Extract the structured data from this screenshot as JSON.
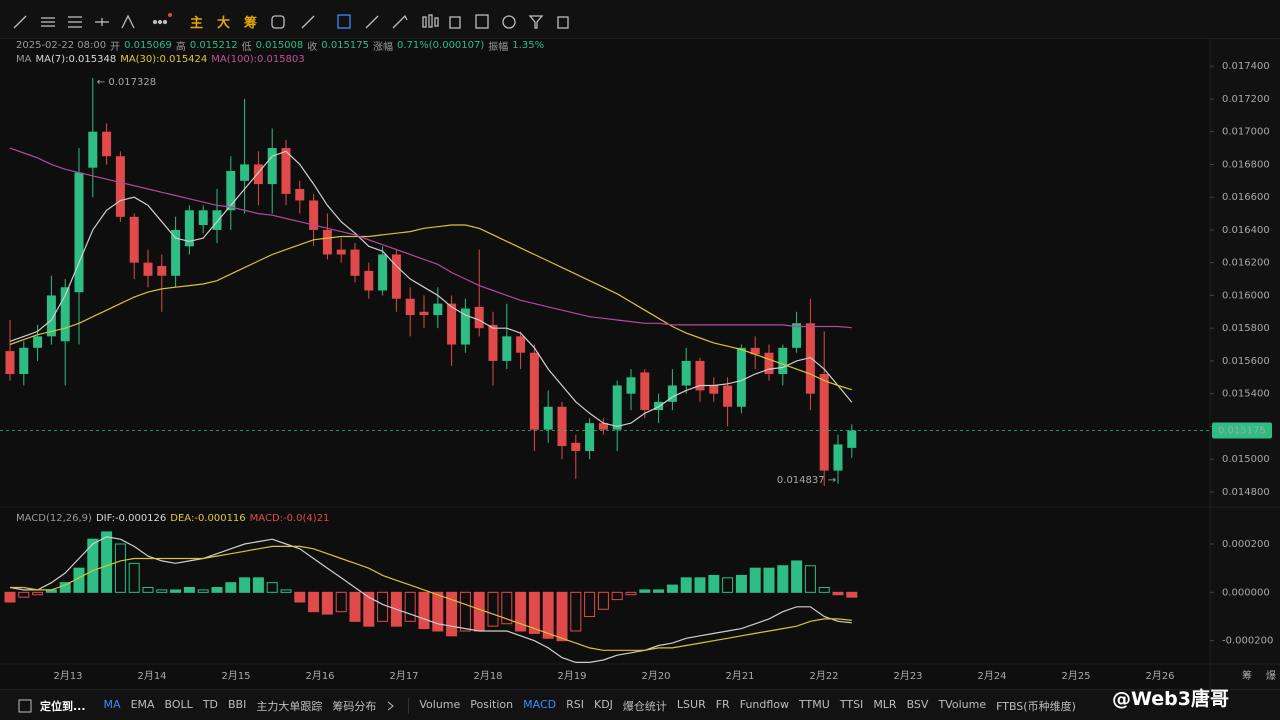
{
  "toolbar": {
    "chart_tools": [
      "主",
      "大",
      "筹"
    ]
  },
  "info": {
    "datetime": "2025-02-22 08:00",
    "fields": [
      {
        "label": "开",
        "value": "0.015069"
      },
      {
        "label": "高",
        "value": "0.015212"
      },
      {
        "label": "低",
        "value": "0.015008"
      },
      {
        "label": "收",
        "value": "0.015175"
      },
      {
        "label": "涨幅",
        "value": "0.71%(0.000107)"
      },
      {
        "label": "振幅",
        "value": "1.35%"
      }
    ]
  },
  "chart_data": [
    {
      "type": "candlestick",
      "legend_title": "MA",
      "up_color": "#2ebd85",
      "down_color": "#e04a4a",
      "open": [
        0.01566,
        0.01552,
        0.01568,
        0.01575,
        0.01572,
        0.01602,
        0.01678,
        0.017,
        0.01685,
        0.01648,
        0.0162,
        0.01618,
        0.01612,
        0.0163,
        0.01643,
        0.0164,
        0.01652,
        0.0167,
        0.0168,
        0.01668,
        0.0169,
        0.01665,
        0.01658,
        0.0164,
        0.01628,
        0.01628,
        0.01615,
        0.01603,
        0.01625,
        0.01598,
        0.0159,
        0.01588,
        0.01595,
        0.0157,
        0.01593,
        0.01582,
        0.0156,
        0.01575,
        0.01565,
        0.01518,
        0.01532,
        0.0151,
        0.01505,
        0.01522,
        0.01518,
        0.0154,
        0.01553,
        0.0153,
        0.01535,
        0.01545,
        0.0156,
        0.01545,
        0.01545,
        0.01532,
        0.01568,
        0.01565,
        0.01552,
        0.01568,
        0.01583,
        0.01552,
        0.01493,
        0.015069
      ],
      "high": [
        0.01585,
        0.01572,
        0.01582,
        0.01612,
        0.0161,
        0.0169,
        0.017328,
        0.01705,
        0.01688,
        0.0165,
        0.01628,
        0.01625,
        0.01648,
        0.01655,
        0.01655,
        0.01665,
        0.01685,
        0.0172,
        0.01688,
        0.01702,
        0.01695,
        0.0167,
        0.01662,
        0.0165,
        0.01635,
        0.01632,
        0.0162,
        0.0163,
        0.01628,
        0.01605,
        0.016,
        0.01605,
        0.016,
        0.01598,
        0.01628,
        0.0159,
        0.01595,
        0.01578,
        0.0157,
        0.01542,
        0.01535,
        0.01515,
        0.01525,
        0.01525,
        0.01548,
        0.01555,
        0.01555,
        0.0154,
        0.01555,
        0.01568,
        0.01562,
        0.0155,
        0.0155,
        0.0157,
        0.01575,
        0.0157,
        0.0157,
        0.0159,
        0.01598,
        0.01578,
        0.01515,
        0.015212
      ],
      "low": [
        0.01548,
        0.01545,
        0.0156,
        0.0157,
        0.01545,
        0.0157,
        0.0166,
        0.0168,
        0.01645,
        0.0161,
        0.01605,
        0.0159,
        0.01605,
        0.01625,
        0.01638,
        0.01632,
        0.0164,
        0.0165,
        0.01655,
        0.0165,
        0.01655,
        0.0165,
        0.0163,
        0.01622,
        0.0162,
        0.01608,
        0.01598,
        0.016,
        0.0159,
        0.01575,
        0.0158,
        0.0158,
        0.01557,
        0.01565,
        0.01575,
        0.01545,
        0.01555,
        0.01555,
        0.01505,
        0.0151,
        0.015,
        0.01488,
        0.015,
        0.01515,
        0.01505,
        0.0153,
        0.01525,
        0.01522,
        0.0153,
        0.0154,
        0.01535,
        0.01535,
        0.0152,
        0.01528,
        0.01555,
        0.01548,
        0.01545,
        0.01565,
        0.0153,
        0.014837,
        0.01485,
        0.015008
      ],
      "close": [
        0.01552,
        0.01568,
        0.01575,
        0.016,
        0.01605,
        0.01675,
        0.017,
        0.01685,
        0.01648,
        0.0162,
        0.01612,
        0.01612,
        0.0164,
        0.01652,
        0.01652,
        0.01652,
        0.01676,
        0.0168,
        0.01668,
        0.0169,
        0.01662,
        0.01658,
        0.0164,
        0.01625,
        0.01625,
        0.01612,
        0.01603,
        0.01625,
        0.01598,
        0.01588,
        0.01588,
        0.01595,
        0.0157,
        0.01592,
        0.0158,
        0.0156,
        0.01575,
        0.01565,
        0.01518,
        0.01532,
        0.01508,
        0.01505,
        0.01522,
        0.01518,
        0.01545,
        0.0155,
        0.0153,
        0.01535,
        0.01545,
        0.0156,
        0.01542,
        0.0154,
        0.01532,
        0.01568,
        0.01564,
        0.01552,
        0.01568,
        0.01583,
        0.0154,
        0.01493,
        0.01509,
        0.015175
      ],
      "series": [
        {
          "name": "MA(7):0.015348",
          "color": "#cfcfcf",
          "values": [
            0.01572,
            0.01575,
            0.01578,
            0.01585,
            0.016,
            0.0162,
            0.0164,
            0.01652,
            0.01658,
            0.0166,
            0.01655,
            0.01645,
            0.01635,
            0.01633,
            0.01635,
            0.01645,
            0.01655,
            0.01665,
            0.01675,
            0.01685,
            0.01688,
            0.0168,
            0.01668,
            0.01655,
            0.01645,
            0.01638,
            0.0163,
            0.01627,
            0.01618,
            0.0161,
            0.01605,
            0.016,
            0.01593,
            0.01588,
            0.01585,
            0.0158,
            0.0158,
            0.01577,
            0.01568,
            0.01555,
            0.01545,
            0.01535,
            0.01528,
            0.01522,
            0.0152,
            0.01522,
            0.01528,
            0.01532,
            0.01538,
            0.01542,
            0.01545,
            0.01545,
            0.01546,
            0.01548,
            0.01552,
            0.01555,
            0.01556,
            0.0156,
            0.01562,
            0.01555,
            0.01545,
            0.015348
          ]
        },
        {
          "name": "MA(30):0.015424",
          "color": "#d8c33a",
          "values": [
            0.0157,
            0.01573,
            0.01576,
            0.01578,
            0.0158,
            0.01583,
            0.01587,
            0.01591,
            0.01595,
            0.01599,
            0.01602,
            0.01604,
            0.01605,
            0.01606,
            0.01607,
            0.01609,
            0.01613,
            0.01617,
            0.01621,
            0.01625,
            0.01628,
            0.01631,
            0.01634,
            0.01635,
            0.01636,
            0.01636,
            0.01636,
            0.01637,
            0.01638,
            0.01639,
            0.01641,
            0.01642,
            0.01643,
            0.01643,
            0.01641,
            0.01637,
            0.01633,
            0.01629,
            0.01625,
            0.01621,
            0.01617,
            0.01613,
            0.01609,
            0.01605,
            0.01601,
            0.01596,
            0.01591,
            0.01586,
            0.01581,
            0.01577,
            0.01574,
            0.01571,
            0.01569,
            0.01567,
            0.01564,
            0.01561,
            0.01558,
            0.01555,
            0.01552,
            0.01548,
            0.01545,
            0.015424
          ]
        },
        {
          "name": "MA(100):0.015803",
          "color": "#b24a9c",
          "values": [
            0.0169,
            0.01687,
            0.01684,
            0.0168,
            0.01677,
            0.01675,
            0.01673,
            0.01671,
            0.01669,
            0.01667,
            0.01665,
            0.01663,
            0.01661,
            0.01659,
            0.01657,
            0.01655,
            0.01654,
            0.01652,
            0.0165,
            0.01649,
            0.01647,
            0.01645,
            0.01643,
            0.01641,
            0.01639,
            0.01637,
            0.01634,
            0.01631,
            0.01628,
            0.01625,
            0.01622,
            0.01619,
            0.01614,
            0.0161,
            0.01606,
            0.01603,
            0.016,
            0.01597,
            0.01595,
            0.01593,
            0.01591,
            0.01589,
            0.01587,
            0.01586,
            0.01585,
            0.01584,
            0.01583,
            0.01583,
            0.01582,
            0.01582,
            0.01582,
            0.01582,
            0.01582,
            0.01582,
            0.01582,
            0.01582,
            0.01582,
            0.01581,
            0.01581,
            0.01581,
            0.01581,
            0.015803
          ]
        }
      ],
      "max_label": "← 0.017328",
      "min_label": "0.014837 →",
      "last_price_label": "0.015175",
      "ylim": [
        0.01472,
        0.01756
      ],
      "yticks": [
        {
          "value": 0.0174,
          "label": "0.017400"
        },
        {
          "value": 0.0172,
          "label": "0.017200"
        },
        {
          "value": 0.017,
          "label": "0.017000"
        },
        {
          "value": 0.0168,
          "label": "0.016800"
        },
        {
          "value": 0.0166,
          "label": "0.016600"
        },
        {
          "value": 0.0164,
          "label": "0.016400"
        },
        {
          "value": 0.0162,
          "label": "0.016200"
        },
        {
          "value": 0.016,
          "label": "0.016000"
        },
        {
          "value": 0.0158,
          "label": "0.015800"
        },
        {
          "value": 0.0156,
          "label": "0.015600"
        },
        {
          "value": 0.0154,
          "label": "0.015400"
        },
        {
          "value": 0.0152,
          "label": "0.015200"
        },
        {
          "value": 0.015,
          "label": "0.015000"
        },
        {
          "value": 0.0148,
          "label": "0.014800"
        }
      ],
      "grid": false
    },
    {
      "type": "macd",
      "title": "MACD(12,26,9)",
      "up_color": "#2ebd85",
      "down_color": "#e04a4a",
      "histogram": {
        "name": "MACD:-0.0(4)21",
        "values": [
          -4e-05,
          -2e-05,
          -1e-05,
          1e-05,
          4e-05,
          0.0001,
          0.00022,
          0.00025,
          0.0002,
          0.00012,
          2e-05,
          1e-05,
          1e-05,
          2e-05,
          1e-05,
          2e-05,
          4e-05,
          6e-05,
          6e-05,
          4e-05,
          1e-05,
          -4e-05,
          -8e-05,
          -9e-05,
          -8e-05,
          -0.00012,
          -0.00014,
          -0.00012,
          -0.00014,
          -0.00012,
          -0.00015,
          -0.00016,
          -0.00018,
          -0.00016,
          -0.00016,
          -0.00014,
          -0.00013,
          -0.00016,
          -0.00017,
          -0.00019,
          -0.0002,
          -0.00016,
          -0.0001,
          -7e-05,
          -3e-05,
          -1e-05,
          1e-05,
          1e-05,
          3e-05,
          6e-05,
          6e-05,
          7e-05,
          6e-05,
          7e-05,
          0.0001,
          0.0001,
          0.00011,
          0.00013,
          0.00011,
          2e-05,
          -1e-05,
          -2e-05
        ]
      },
      "series": [
        {
          "name": "DIF:-0.000126",
          "color": "#cfcfcf",
          "values": [
            2e-05,
            1e-05,
            1e-05,
            4e-05,
            8e-05,
            0.00014,
            0.0002,
            0.00023,
            0.00022,
            0.00019,
            0.00015,
            0.00013,
            0.00012,
            0.00013,
            0.00014,
            0.00016,
            0.00018,
            0.0002,
            0.00021,
            0.00022,
            0.0002,
            0.00018,
            0.00014,
            0.0001,
            6e-05,
            2e-05,
            -2e-05,
            -5e-05,
            -7e-05,
            -9e-05,
            -0.00011,
            -0.00013,
            -0.00014,
            -0.00015,
            -0.00016,
            -0.00016,
            -0.00016,
            -0.00018,
            -0.0002,
            -0.00023,
            -0.00027,
            -0.00029,
            -0.00029,
            -0.00028,
            -0.00026,
            -0.00025,
            -0.00024,
            -0.00022,
            -0.00021,
            -0.00019,
            -0.00018,
            -0.00017,
            -0.00016,
            -0.00015,
            -0.00013,
            -0.00011,
            -8e-05,
            -6e-05,
            -6e-05,
            -0.0001,
            -0.00012,
            -0.000126
          ]
        },
        {
          "name": "DEA:-0.000116",
          "color": "#d8c33a",
          "values": [
            2e-05,
            2e-05,
            1e-05,
            1e-05,
            3e-05,
            6e-05,
            9e-05,
            0.00011,
            0.00013,
            0.00014,
            0.00014,
            0.00014,
            0.00014,
            0.00014,
            0.00014,
            0.00015,
            0.00016,
            0.00017,
            0.00018,
            0.00019,
            0.00019,
            0.00019,
            0.00018,
            0.00016,
            0.00014,
            0.00012,
            0.0001,
            7e-05,
            5e-05,
            3e-05,
            1e-05,
            -1e-05,
            -3e-05,
            -5e-05,
            -7e-05,
            -9e-05,
            -0.00011,
            -0.00013,
            -0.00015,
            -0.00017,
            -0.00019,
            -0.00021,
            -0.00023,
            -0.00024,
            -0.00024,
            -0.00024,
            -0.00024,
            -0.00023,
            -0.00023,
            -0.00022,
            -0.00021,
            -0.0002,
            -0.00019,
            -0.00018,
            -0.00017,
            -0.00016,
            -0.00015,
            -0.00014,
            -0.00012,
            -0.00011,
            -0.00011,
            -0.000116
          ]
        }
      ],
      "ylim": [
        -0.00028,
        0.00032
      ],
      "yticks": [
        {
          "value": 0.0002,
          "label": "0.000200"
        },
        {
          "value": 0,
          "label": "0.000000"
        },
        {
          "value": -0.0002,
          "label": "-0.000200"
        }
      ],
      "grid": false
    }
  ],
  "x_axis": {
    "labels": [
      "2月13",
      "2月14",
      "2月15",
      "2月16",
      "2月17",
      "2月18",
      "2月19",
      "2月20",
      "2月21",
      "2月22",
      "2月23",
      "2月24",
      "2月25",
      "2月26"
    ]
  },
  "side_labels": [
    "筹",
    "爆"
  ],
  "bottom_toolbar": {
    "locate": "定位到...",
    "main": [
      {
        "label": "MA",
        "active": true
      },
      {
        "label": "EMA"
      },
      {
        "label": "BOLL"
      },
      {
        "label": "TD"
      },
      {
        "label": "BBI"
      },
      {
        "label": "主力大单跟踪"
      },
      {
        "label": "筹码分布"
      }
    ],
    "sub": [
      {
        "label": "Volume"
      },
      {
        "label": "Position"
      },
      {
        "label": "MACD",
        "active": true
      },
      {
        "label": "RSI"
      },
      {
        "label": "KDJ"
      },
      {
        "label": "爆仓统计"
      },
      {
        "label": "LSUR"
      },
      {
        "label": "FR"
      },
      {
        "label": "Fundflow"
      },
      {
        "label": "TTMU"
      },
      {
        "label": "TTSI"
      },
      {
        "label": "MLR"
      },
      {
        "label": "BSV"
      },
      {
        "label": "TVolume"
      },
      {
        "label": "FTBS(币种维度)"
      }
    ]
  },
  "watermark": "@Web3唐哥"
}
